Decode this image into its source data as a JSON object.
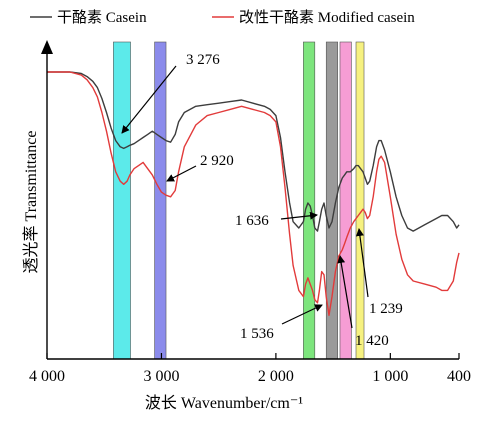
{
  "chart_data": {
    "type": "line",
    "title": "",
    "xlabel": "波长 Wavenumber/cm⁻¹",
    "ylabel": "透光率 Transmittance",
    "x_reversed": true,
    "xlim": [
      4000,
      400
    ],
    "ylim": [
      0,
      1
    ],
    "x_ticks": [
      4000,
      3000,
      2000,
      1000,
      400
    ],
    "x_tick_labels": [
      "4 000",
      "3 000",
      "2 000",
      "1 000",
      "400"
    ],
    "legend_position": "top",
    "series": [
      {
        "name": "干酪素 Casein",
        "color": "#3d3d3d",
        "x": [
          4000,
          3900,
          3800,
          3700,
          3650,
          3600,
          3560,
          3520,
          3480,
          3440,
          3400,
          3360,
          3330,
          3300,
          3276,
          3240,
          3200,
          3160,
          3120,
          3080,
          3040,
          3000,
          2960,
          2920,
          2880,
          2850,
          2800,
          2700,
          2600,
          2500,
          2400,
          2300,
          2200,
          2100,
          2050,
          2000,
          1960,
          1920,
          1880,
          1850,
          1800,
          1760,
          1740,
          1720,
          1700,
          1680,
          1660,
          1636,
          1620,
          1600,
          1580,
          1560,
          1536,
          1510,
          1480,
          1450,
          1420,
          1400,
          1380,
          1350,
          1320,
          1300,
          1280,
          1260,
          1239,
          1220,
          1200,
          1180,
          1150,
          1120,
          1100,
          1080,
          1050,
          1000,
          950,
          900,
          850,
          800,
          700,
          600,
          550,
          500,
          450,
          420,
          400
        ],
        "y": [
          0.92,
          0.92,
          0.92,
          0.915,
          0.905,
          0.89,
          0.87,
          0.835,
          0.79,
          0.74,
          0.7,
          0.68,
          0.675,
          0.68,
          0.685,
          0.69,
          0.7,
          0.71,
          0.72,
          0.73,
          0.72,
          0.71,
          0.7,
          0.695,
          0.72,
          0.76,
          0.79,
          0.81,
          0.815,
          0.82,
          0.825,
          0.83,
          0.82,
          0.81,
          0.8,
          0.78,
          0.71,
          0.6,
          0.5,
          0.44,
          0.42,
          0.44,
          0.48,
          0.5,
          0.49,
          0.46,
          0.42,
          0.41,
          0.44,
          0.48,
          0.5,
          0.46,
          0.42,
          0.44,
          0.5,
          0.55,
          0.58,
          0.59,
          0.6,
          0.6,
          0.61,
          0.62,
          0.62,
          0.61,
          0.6,
          0.58,
          0.56,
          0.57,
          0.62,
          0.68,
          0.7,
          0.7,
          0.67,
          0.6,
          0.52,
          0.46,
          0.42,
          0.41,
          0.43,
          0.45,
          0.46,
          0.46,
          0.44,
          0.42,
          0.43
        ]
      },
      {
        "name": "改性干酪素 Modified casein",
        "color": "#e23b3b",
        "x": [
          4000,
          3900,
          3800,
          3700,
          3650,
          3600,
          3560,
          3520,
          3480,
          3440,
          3400,
          3360,
          3330,
          3300,
          3276,
          3240,
          3200,
          3160,
          3120,
          3080,
          3040,
          3000,
          2960,
          2920,
          2880,
          2850,
          2800,
          2700,
          2600,
          2500,
          2400,
          2300,
          2200,
          2100,
          2050,
          2000,
          1960,
          1920,
          1880,
          1850,
          1800,
          1760,
          1740,
          1720,
          1700,
          1680,
          1660,
          1636,
          1620,
          1600,
          1580,
          1560,
          1536,
          1510,
          1480,
          1450,
          1420,
          1400,
          1380,
          1350,
          1320,
          1300,
          1280,
          1260,
          1239,
          1220,
          1200,
          1180,
          1150,
          1120,
          1100,
          1080,
          1050,
          1000,
          950,
          900,
          850,
          800,
          700,
          600,
          550,
          500,
          450,
          420,
          400
        ],
        "y": [
          0.92,
          0.92,
          0.92,
          0.91,
          0.895,
          0.87,
          0.84,
          0.79,
          0.73,
          0.66,
          0.6,
          0.57,
          0.56,
          0.57,
          0.59,
          0.61,
          0.62,
          0.63,
          0.61,
          0.59,
          0.56,
          0.535,
          0.525,
          0.52,
          0.54,
          0.6,
          0.68,
          0.75,
          0.78,
          0.79,
          0.8,
          0.81,
          0.8,
          0.79,
          0.78,
          0.76,
          0.68,
          0.55,
          0.4,
          0.3,
          0.22,
          0.2,
          0.24,
          0.26,
          0.24,
          0.22,
          0.19,
          0.18,
          0.22,
          0.28,
          0.27,
          0.2,
          0.14,
          0.2,
          0.28,
          0.33,
          0.35,
          0.37,
          0.39,
          0.42,
          0.44,
          0.45,
          0.46,
          0.47,
          0.48,
          0.47,
          0.45,
          0.46,
          0.52,
          0.6,
          0.64,
          0.65,
          0.63,
          0.52,
          0.4,
          0.32,
          0.27,
          0.25,
          0.24,
          0.23,
          0.22,
          0.22,
          0.25,
          0.31,
          0.34
        ]
      }
    ],
    "bands": [
      {
        "x1": 3420,
        "x2": 3270,
        "color": "#3fe6e6"
      },
      {
        "x1": 3060,
        "x2": 2960,
        "color": "#7777e8"
      },
      {
        "x1": 1760,
        "x2": 1660,
        "color": "#66e066"
      },
      {
        "x1": 1560,
        "x2": 1460,
        "color": "#888888"
      },
      {
        "x1": 1440,
        "x2": 1340,
        "color": "#f58ccc"
      },
      {
        "x1": 1300,
        "x2": 1230,
        "color": "#f4ef6a"
      }
    ],
    "annotations": [
      {
        "label": "3 276",
        "target": "3276",
        "series": 0
      },
      {
        "label": "2 920",
        "target": "2920",
        "series": 1
      },
      {
        "label": "1 636",
        "target": "1636",
        "series": 0
      },
      {
        "label": "1 536",
        "target": "1536",
        "series": 1
      },
      {
        "label": "1 420",
        "target": "1420",
        "series": 1
      },
      {
        "label": "1 239",
        "target": "1239",
        "series": 1
      }
    ]
  }
}
